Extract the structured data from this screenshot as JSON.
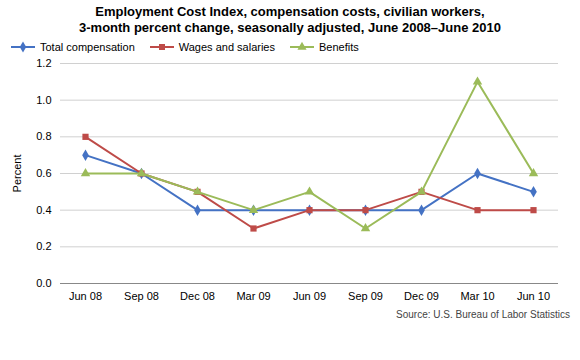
{
  "chart_data": {
    "type": "line",
    "title": "Employment Cost Index, compensation costs, civilian workers,\n3-month percent change, seasonally adjusted, June 2008–June 2010",
    "ylabel": "Percent",
    "annotations": [
      "Source: U.S. Bureau of Labor Statistics"
    ],
    "categories": [
      "Jun 08",
      "Sep 08",
      "Dec 08",
      "Mar 09",
      "Jun 09",
      "Sep 09",
      "Dec 09",
      "Mar 10",
      "Jun 10"
    ],
    "series": [
      {
        "name": "Total compensation",
        "color": "#4472C4",
        "marker": "diamond",
        "values": [
          0.7,
          0.6,
          0.4,
          0.4,
          0.4,
          0.4,
          0.4,
          0.6,
          0.5
        ]
      },
      {
        "name": "Wages and salaries",
        "color": "#BE4B48",
        "marker": "square",
        "values": [
          0.8,
          0.6,
          0.5,
          0.3,
          0.4,
          0.4,
          0.5,
          0.4,
          0.4
        ]
      },
      {
        "name": "Benefits",
        "color": "#9BBB59",
        "marker": "triangle",
        "values": [
          0.6,
          0.6,
          0.5,
          0.4,
          0.5,
          0.3,
          0.5,
          1.1,
          0.6
        ]
      }
    ],
    "ylim": [
      0.0,
      1.2
    ],
    "yticks": [
      {
        "value": 0.0,
        "label": "0.0"
      },
      0.2,
      0.4,
      0.6,
      0.8,
      {
        "value": 1.0,
        "label": "1.0"
      },
      1.2
    ],
    "grid": true,
    "legend": "upper left"
  }
}
